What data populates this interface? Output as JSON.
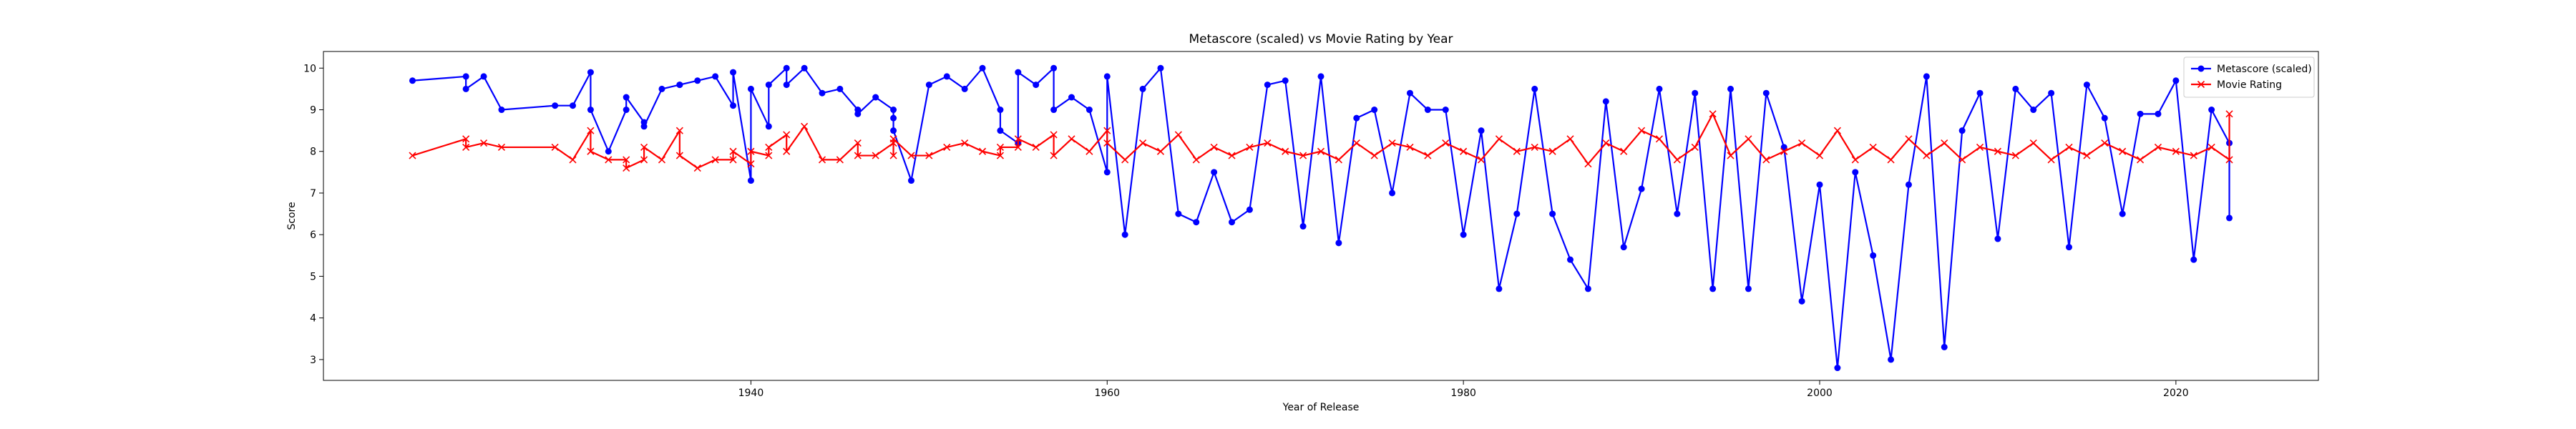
{
  "chart_data": {
    "type": "line",
    "title": "Metascore (scaled) vs Movie Rating by Year",
    "xlabel": "Year of Release",
    "ylabel": "Score",
    "xlim": [
      1916,
      2028
    ],
    "ylim": [
      2.5,
      10.4
    ],
    "x_ticks": [
      1940,
      1960,
      1980,
      2000,
      2020
    ],
    "y_ticks": [
      3,
      4,
      5,
      6,
      7,
      8,
      9,
      10
    ],
    "grid": false,
    "legend_position": "top-right",
    "series": [
      {
        "name": "Metascore (scaled)",
        "color": "#0000ff",
        "marker": "circle",
        "x": [
          1921,
          1924,
          1924,
          1925,
          1926,
          1929,
          1930,
          1931,
          1931,
          1932,
          1933,
          1933,
          1934,
          1934,
          1935,
          1936,
          1936,
          1937,
          1938,
          1939,
          1939,
          1940,
          1940,
          1941,
          1941,
          1942,
          1942,
          1943,
          1944,
          1945,
          1946,
          1946,
          1947,
          1948,
          1948,
          1948,
          1949,
          1950,
          1951,
          1952,
          1953,
          1954,
          1954,
          1955,
          1955,
          1956,
          1957,
          1957,
          1958,
          1959,
          1960,
          1960,
          1961,
          1962,
          1963,
          1964,
          1965,
          1966,
          1967,
          1968,
          1969,
          1970,
          1971,
          1972,
          1973,
          1974,
          1975,
          1976,
          1977,
          1978,
          1979,
          1980,
          1981,
          1982,
          1983,
          1984,
          1985,
          1986,
          1987,
          1988,
          1989,
          1990,
          1991,
          1992,
          1993,
          1994,
          1995,
          1996,
          1997,
          1998,
          1999,
          2000,
          2001,
          2002,
          2003,
          2004,
          2005,
          2006,
          2007,
          2008,
          2009,
          2010,
          2011,
          2012,
          2013,
          2014,
          2015,
          2016,
          2017,
          2018,
          2019,
          2020,
          2021,
          2022,
          2023,
          2023
        ],
        "y": [
          9.7,
          9.8,
          9.5,
          9.8,
          9.0,
          9.1,
          9.1,
          9.9,
          9.0,
          8.0,
          9.0,
          9.3,
          8.7,
          8.6,
          9.5,
          9.6,
          9.6,
          9.7,
          9.8,
          9.1,
          9.9,
          7.3,
          9.5,
          8.6,
          9.6,
          10.0,
          9.6,
          10.0,
          9.4,
          9.5,
          9.0,
          8.9,
          9.3,
          9.0,
          8.8,
          8.5,
          7.3,
          9.6,
          9.8,
          9.5,
          10.0,
          9.0,
          8.5,
          8.2,
          9.9,
          9.6,
          10.0,
          9.0,
          9.3,
          9.0,
          7.5,
          9.8,
          6.0,
          9.5,
          10.0,
          6.5,
          6.3,
          7.5,
          6.3,
          6.6,
          9.6,
          9.7,
          6.2,
          9.8,
          5.8,
          8.8,
          9.0,
          7.0,
          9.4,
          9.0,
          9.0,
          6.0,
          8.5,
          4.7,
          6.5,
          9.5,
          6.5,
          5.4,
          4.7,
          9.2,
          5.7,
          7.1,
          9.5,
          6.5,
          9.4,
          4.7,
          9.5,
          4.7,
          9.4,
          8.1,
          4.4,
          7.2,
          2.8,
          7.5,
          5.5,
          3.0,
          7.2,
          9.8,
          3.3,
          8.5,
          9.4,
          5.9,
          9.5,
          9.0,
          9.4,
          5.7,
          9.6,
          8.8,
          6.5,
          8.9,
          8.9,
          9.7,
          5.4,
          9.0,
          8.2,
          6.4
        ]
      },
      {
        "name": "Movie Rating",
        "color": "#ff0000",
        "marker": "x",
        "x": [
          1921,
          1924,
          1924,
          1925,
          1926,
          1929,
          1930,
          1931,
          1931,
          1932,
          1933,
          1933,
          1934,
          1934,
          1935,
          1936,
          1936,
          1937,
          1938,
          1939,
          1939,
          1940,
          1940,
          1941,
          1941,
          1942,
          1942,
          1943,
          1944,
          1945,
          1946,
          1946,
          1947,
          1948,
          1948,
          1948,
          1949,
          1950,
          1951,
          1952,
          1953,
          1954,
          1954,
          1955,
          1955,
          1956,
          1957,
          1957,
          1958,
          1959,
          1960,
          1960,
          1961,
          1962,
          1963,
          1964,
          1965,
          1966,
          1967,
          1968,
          1969,
          1970,
          1971,
          1972,
          1973,
          1974,
          1975,
          1976,
          1977,
          1978,
          1979,
          1980,
          1981,
          1982,
          1983,
          1984,
          1985,
          1986,
          1987,
          1988,
          1989,
          1990,
          1991,
          1992,
          1993,
          1994,
          1995,
          1996,
          1997,
          1998,
          1999,
          2000,
          2001,
          2002,
          2003,
          2004,
          2005,
          2006,
          2007,
          2008,
          2009,
          2010,
          2011,
          2012,
          2013,
          2014,
          2015,
          2016,
          2017,
          2018,
          2019,
          2020,
          2021,
          2022,
          2023,
          2023
        ],
        "y": [
          7.9,
          8.3,
          8.1,
          8.2,
          8.1,
          8.1,
          7.8,
          8.5,
          8.0,
          7.8,
          7.8,
          7.6,
          7.8,
          8.1,
          7.8,
          8.5,
          7.9,
          7.6,
          7.8,
          7.8,
          8.0,
          7.7,
          8.0,
          7.9,
          8.1,
          8.4,
          8.0,
          8.6,
          7.8,
          7.8,
          8.2,
          7.9,
          7.9,
          8.2,
          7.9,
          8.3,
          7.9,
          7.9,
          8.1,
          8.2,
          8.0,
          7.9,
          8.1,
          8.1,
          8.3,
          8.1,
          8.4,
          7.9,
          8.3,
          8.0,
          8.5,
          8.2,
          7.8,
          8.2,
          8.0,
          8.4,
          7.8,
          8.1,
          7.9,
          8.1,
          8.2,
          8.0,
          7.9,
          8.0,
          7.8,
          8.2,
          7.9,
          8.2,
          8.1,
          7.9,
          8.2,
          8.0,
          7.8,
          8.3,
          8.0,
          8.1,
          8.0,
          8.3,
          7.7,
          8.2,
          8.0,
          8.5,
          8.3,
          7.8,
          8.1,
          8.9,
          7.9,
          8.3,
          7.8,
          8.0,
          8.2,
          7.9,
          8.5,
          7.8,
          8.1,
          7.8,
          8.3,
          7.9,
          8.2,
          7.8,
          8.1,
          8.0,
          7.9,
          8.2,
          7.8,
          8.1,
          7.9,
          8.2,
          8.0,
          7.8,
          8.1,
          8.0,
          7.9,
          8.1,
          7.8,
          8.9
        ]
      }
    ]
  }
}
